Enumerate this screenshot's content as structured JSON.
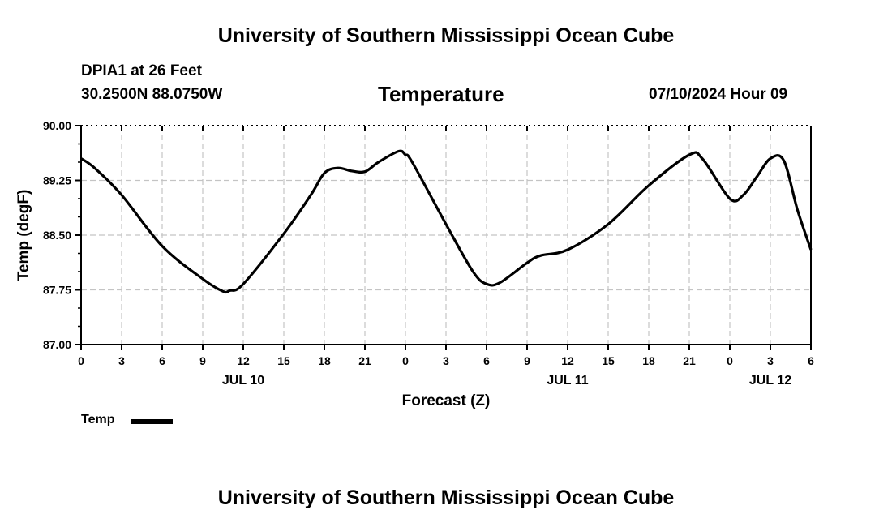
{
  "page": {
    "title": "University of Southern Mississippi Ocean Cube",
    "footer_title": "University of Southern Mississippi Ocean Cube",
    "station": "DPIA1 at 26 Feet",
    "coordinates": "30.2500N  88.0750W",
    "run_time": "07/10/2024 Hour 09"
  },
  "chart_data": {
    "type": "line",
    "title": "Temperature",
    "xlabel": "Forecast (Z)",
    "ylabel": "Temp (degF)",
    "ylim": [
      87.0,
      90.0
    ],
    "yticks": [
      87.0,
      87.75,
      88.5,
      89.25,
      90.0
    ],
    "ytick_labels": [
      "87.00",
      "87.75",
      "88.50",
      "89.25",
      "90.00"
    ],
    "xlim": [
      0,
      54
    ],
    "xticks": [
      0,
      3,
      6,
      9,
      12,
      15,
      18,
      21,
      24,
      27,
      30,
      33,
      36,
      39,
      42,
      45,
      48,
      51,
      54
    ],
    "xtick_labels": [
      "0",
      "3",
      "6",
      "9",
      "12",
      "15",
      "18",
      "21",
      "0",
      "3",
      "6",
      "9",
      "12",
      "15",
      "18",
      "21",
      "0",
      "3",
      "6"
    ],
    "date_labels": [
      {
        "x": 12,
        "label": "JUL 10"
      },
      {
        "x": 36,
        "label": "JUL 11"
      },
      {
        "x": 51,
        "label": "JUL 12"
      }
    ],
    "grid": true,
    "legend": [
      {
        "name": "Temp",
        "position": "bottom-left"
      }
    ],
    "series": [
      {
        "name": "Temp",
        "color": "#000000",
        "x": [
          0,
          1,
          3,
          6,
          9,
          10.5,
          11,
          12,
          15,
          17,
          18,
          19,
          20,
          21,
          22,
          23.5,
          24,
          24.5,
          27,
          29,
          30,
          31,
          33,
          34,
          36,
          39,
          42,
          45,
          46,
          48,
          49,
          50,
          51,
          52,
          53,
          54
        ],
        "y": [
          89.55,
          89.42,
          89.05,
          88.35,
          87.9,
          87.73,
          87.74,
          87.83,
          88.52,
          89.05,
          89.35,
          89.42,
          89.38,
          89.37,
          89.5,
          89.65,
          89.6,
          89.5,
          88.65,
          88.0,
          87.83,
          87.85,
          88.12,
          88.22,
          88.3,
          88.65,
          89.18,
          89.6,
          89.54,
          89.0,
          89.05,
          89.3,
          89.55,
          89.52,
          88.85,
          88.3
        ]
      }
    ]
  }
}
